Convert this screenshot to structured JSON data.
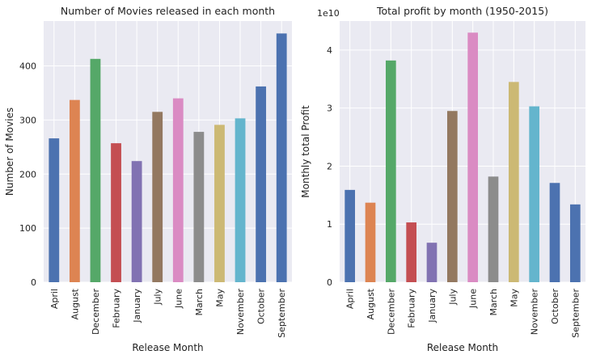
{
  "colors": {
    "palette": [
      "#4c72b0",
      "#dd8452",
      "#55a868",
      "#c44e52",
      "#8172b2",
      "#937860",
      "#da8bc3",
      "#8c8c8c",
      "#ccb974",
      "#64b5cd",
      "#4c72b0",
      "#4c72b0"
    ],
    "plot_background": "#eaeaf2",
    "grid": "#ffffff"
  },
  "chart_data": [
    {
      "type": "bar",
      "title": "Number of Movies released in each month",
      "xlabel": "Release Month",
      "ylabel": "Number of Movies",
      "categories": [
        "April",
        "August",
        "December",
        "February",
        "January",
        "July",
        "June",
        "March",
        "May",
        "November",
        "October",
        "September"
      ],
      "values": [
        266,
        337,
        413,
        257,
        224,
        315,
        340,
        278,
        291,
        303,
        362,
        460
      ],
      "ylim": [
        0,
        483
      ],
      "yticks": [
        0,
        100,
        200,
        300,
        400
      ],
      "ytick_labels": [
        "0",
        "100",
        "200",
        "300",
        "400"
      ],
      "grid": true,
      "legend": "none"
    },
    {
      "type": "bar",
      "title": "Total profit by month (1950-2015)",
      "xlabel": "Release Month",
      "ylabel": "Monthly total Profit",
      "offset_label": "1e10",
      "categories": [
        "April",
        "August",
        "December",
        "February",
        "January",
        "July",
        "June",
        "March",
        "May",
        "November",
        "October",
        "September"
      ],
      "values": [
        15900000000.0,
        13700000000.0,
        38200000000.0,
        10300000000.0,
        6800000000.0,
        29500000000.0,
        43000000000.0,
        18200000000.0,
        34500000000.0,
        30300000000.0,
        17100000000.0,
        13400000000.0
      ],
      "ylim": [
        0,
        45000000000.0
      ],
      "yticks": [
        0,
        10000000000.0,
        20000000000.0,
        30000000000.0,
        40000000000.0
      ],
      "ytick_labels": [
        "0",
        "1",
        "2",
        "3",
        "4"
      ],
      "grid": true,
      "legend": "none"
    }
  ]
}
